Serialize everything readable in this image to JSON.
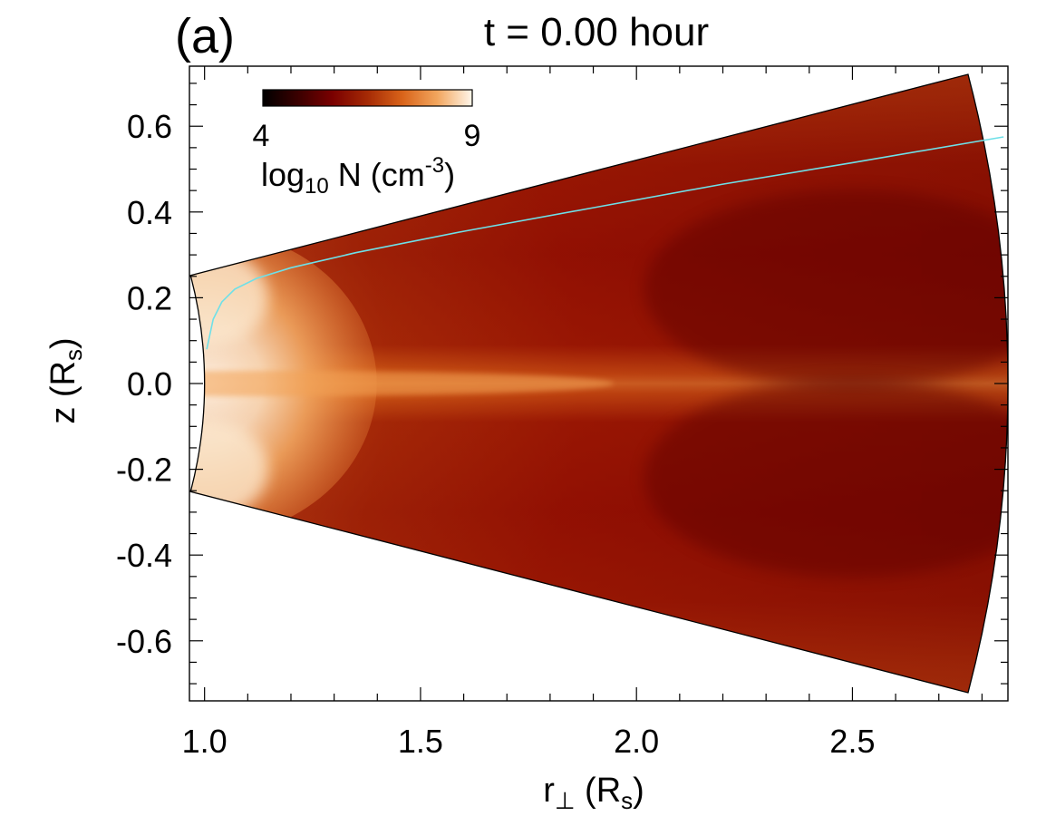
{
  "chart_data": {
    "type": "heatmap",
    "panel_label": "(a)",
    "title": "t = 0.00 hour",
    "xlabel": {
      "main": "r",
      "symbol": "⊥",
      "open": " (R",
      "sub": "s",
      "close": ")"
    },
    "ylabel": {
      "main": "z (R",
      "sub": "s",
      "close": ")"
    },
    "xlim": [
      0.965,
      2.86
    ],
    "ylim": [
      -0.74,
      0.74
    ],
    "xticks": [
      1.0,
      1.5,
      2.0,
      2.5
    ],
    "xtick_labels": [
      "1.0",
      "1.5",
      "2.0",
      "2.5"
    ],
    "yticks": [
      0.6,
      0.4,
      0.2,
      0.0,
      -0.2,
      -0.4,
      -0.6
    ],
    "ytick_labels": [
      "0.6",
      "0.4",
      "0.2",
      "0.0",
      "-0.2",
      "-0.4",
      "-0.6"
    ],
    "colorbar": {
      "min": 4,
      "max": 9,
      "min_label": "4",
      "max_label": "9",
      "label_main": "log",
      "label_sub": "10",
      "label_mid": " N (cm",
      "label_sup": "-3",
      "label_close": ")",
      "colormap": [
        "#000000",
        "#3a0000",
        "#7a0000",
        "#a52a05",
        "#d9641a",
        "#f2a65e",
        "#fff6ea"
      ]
    },
    "domain": {
      "r_inner": 1.0,
      "r_outer": 2.86,
      "half_angle_deg": 14.6
    },
    "field_line": {
      "color": "#6ee0e8",
      "x": [
        1.005,
        1.02,
        1.04,
        1.07,
        1.12,
        1.2,
        1.35,
        1.6,
        1.9,
        2.2,
        2.5,
        2.85
      ],
      "y": [
        0.08,
        0.15,
        0.19,
        0.22,
        0.245,
        0.27,
        0.305,
        0.355,
        0.41,
        0.465,
        0.515,
        0.575
      ]
    }
  }
}
